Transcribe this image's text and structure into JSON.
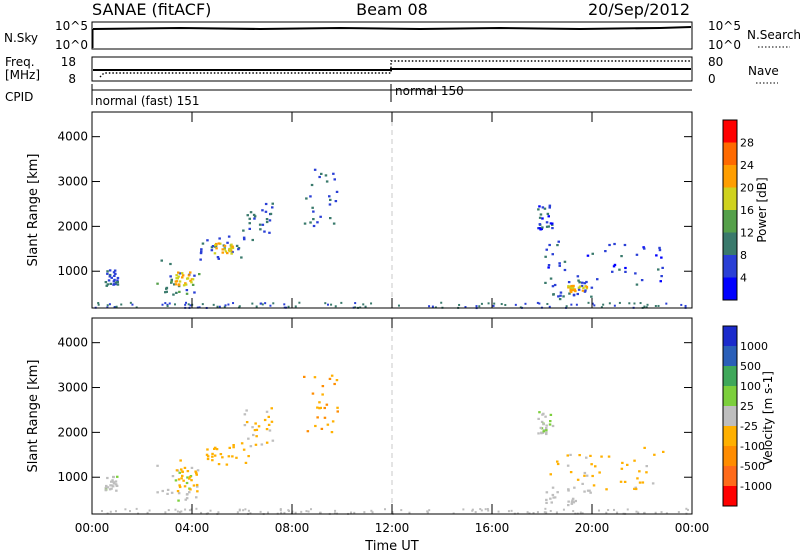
{
  "header": {
    "station": "SANAE (fitACF)",
    "beam": "Beam 08",
    "date": "20/Sep/2012"
  },
  "noise_panel": {
    "left_label": "N.Sky",
    "left_ticks": [
      "10^5",
      "10^0"
    ],
    "right_label": "N.Search",
    "right_ticks": [
      "10^5",
      "10^0"
    ]
  },
  "freq_panel": {
    "left_label_1": "Freq.",
    "left_label_2": "[MHz]",
    "left_ticks": [
      "18",
      "8"
    ],
    "right_label": "Nave",
    "right_ticks": [
      "80",
      "0"
    ]
  },
  "cpid_panel": {
    "label": "CPID",
    "modes": [
      {
        "name": "normal (fast) 151",
        "start_hour": 0
      },
      {
        "name": "normal 150",
        "start_hour": 12
      }
    ]
  },
  "colors": {
    "power": [
      "#0000ff",
      "#2a3fd6",
      "#3a7a6c",
      "#55a04a",
      "#cfd21e",
      "#ff9e00",
      "#ff6a00",
      "#ff0000"
    ],
    "velocity": [
      "#ff0000",
      "#ff6a1a",
      "#ff8c00",
      "#ffb000",
      "#bebebe",
      "#7ccf3c",
      "#3fa85a",
      "#2a5fb8",
      "#1b2bcc"
    ]
  },
  "chart_data": [
    {
      "type": "heatmap",
      "title": "Power",
      "ylabel": "Slant Range [km]",
      "ylim": [
        180,
        4550
      ],
      "y_ticks": [
        "1000",
        "2000",
        "3000",
        "4000"
      ],
      "colorbar": {
        "label": "Power [dB]",
        "ticks": [
          "4",
          "8",
          "12",
          "16",
          "20",
          "24",
          "28"
        ],
        "range": [
          0,
          32
        ]
      },
      "regions": [
        {
          "x": [
            0.5,
            1.0
          ],
          "y": [
            700,
            1050
          ],
          "value": 8
        },
        {
          "x": [
            2.5,
            4.3
          ],
          "y": [
            500,
            1300
          ],
          "value": 10
        },
        {
          "x": [
            3.3,
            4.0
          ],
          "y": [
            700,
            1000
          ],
          "value": 20
        },
        {
          "x": [
            4.3,
            6.3
          ],
          "y": [
            1300,
            1800
          ],
          "value": 8
        },
        {
          "x": [
            4.8,
            5.6
          ],
          "y": [
            1400,
            1650
          ],
          "value": 20
        },
        {
          "x": [
            6.0,
            7.2
          ],
          "y": [
            1700,
            2600
          ],
          "value": 8
        },
        {
          "x": [
            8.4,
            9.8
          ],
          "y": [
            2000,
            3300
          ],
          "value": 8
        },
        {
          "x": [
            17.8,
            18.4
          ],
          "y": [
            1950,
            2500
          ],
          "value": 6
        },
        {
          "x": [
            18.0,
            20.0
          ],
          "y": [
            400,
            800
          ],
          "value": 8
        },
        {
          "x": [
            19.0,
            19.8
          ],
          "y": [
            550,
            700
          ],
          "value": 20
        },
        {
          "x": [
            18.0,
            22.8
          ],
          "y": [
            700,
            1700
          ],
          "value": 6
        }
      ]
    },
    {
      "type": "heatmap",
      "title": "Velocity",
      "ylabel": "Slant Range [km]",
      "ylim": [
        180,
        4550
      ],
      "y_ticks": [
        "1000",
        "2000",
        "3000",
        "4000"
      ],
      "colorbar": {
        "label": "Velocity [m s-1]",
        "ticks": [
          "1000",
          "500",
          "100",
          "25",
          "-25",
          "-100",
          "-500",
          "-1000"
        ],
        "range": [
          -1200,
          1200
        ]
      },
      "regions": [
        {
          "x": [
            0.5,
            1.0
          ],
          "y": [
            700,
            1050
          ],
          "value": 50
        },
        {
          "x": [
            2.5,
            4.3
          ],
          "y": [
            500,
            1300
          ],
          "value": 80
        },
        {
          "x": [
            3.3,
            4.3
          ],
          "y": [
            700,
            1400
          ],
          "value": -300
        },
        {
          "x": [
            4.3,
            6.3
          ],
          "y": [
            1300,
            1800
          ],
          "value": -300
        },
        {
          "x": [
            6.0,
            7.2
          ],
          "y": [
            1700,
            2600
          ],
          "value": -150
        },
        {
          "x": [
            8.4,
            9.8
          ],
          "y": [
            2000,
            3300
          ],
          "value": -400
        },
        {
          "x": [
            17.8,
            18.4
          ],
          "y": [
            1950,
            2500
          ],
          "value": 80
        },
        {
          "x": [
            18.0,
            20.0
          ],
          "y": [
            400,
            800
          ],
          "value": 0
        },
        {
          "x": [
            18.0,
            22.8
          ],
          "y": [
            700,
            1700
          ],
          "value": -200
        }
      ]
    }
  ],
  "x_axis": {
    "label": "Time UT",
    "ticks": [
      "00:00",
      "04:00",
      "08:00",
      "12:00",
      "16:00",
      "20:00",
      "00:00"
    ],
    "range_hours": [
      0,
      24
    ]
  }
}
